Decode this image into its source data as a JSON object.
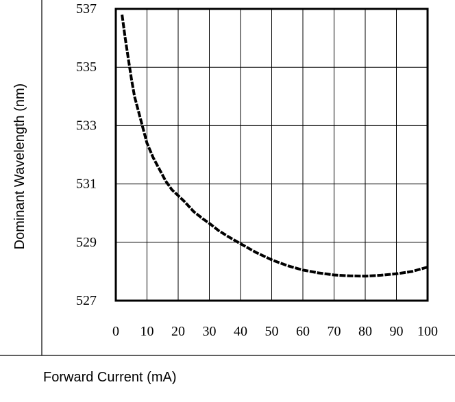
{
  "chart_data": {
    "type": "line",
    "title": "",
    "xlabel": "Forward Current (mA)",
    "ylabel": "Dominant Wavelength (nm)",
    "xlim": [
      0,
      100
    ],
    "ylim": [
      527,
      537
    ],
    "xticks": [
      0,
      10,
      20,
      30,
      40,
      50,
      60,
      70,
      80,
      90,
      100
    ],
    "yticks": [
      527,
      529,
      531,
      533,
      535,
      537
    ],
    "grid": true,
    "series": [
      {
        "x": [
          2,
          3,
          4,
          5,
          6,
          7,
          8,
          9,
          10,
          12,
          14,
          16,
          18,
          20,
          22,
          25,
          28,
          30,
          33,
          36,
          40,
          45,
          50,
          55,
          60,
          65,
          70,
          75,
          80,
          85,
          90,
          95,
          100
        ],
        "y": [
          536.8,
          536.0,
          535.3,
          534.6,
          534.0,
          533.6,
          533.2,
          532.8,
          532.4,
          531.9,
          531.5,
          531.1,
          530.8,
          530.6,
          530.4,
          530.05,
          529.8,
          529.65,
          529.4,
          529.2,
          528.95,
          528.65,
          528.4,
          528.2,
          528.05,
          527.95,
          527.88,
          527.85,
          527.84,
          527.87,
          527.92,
          528.0,
          528.15
        ],
        "color": "#000000"
      }
    ]
  }
}
